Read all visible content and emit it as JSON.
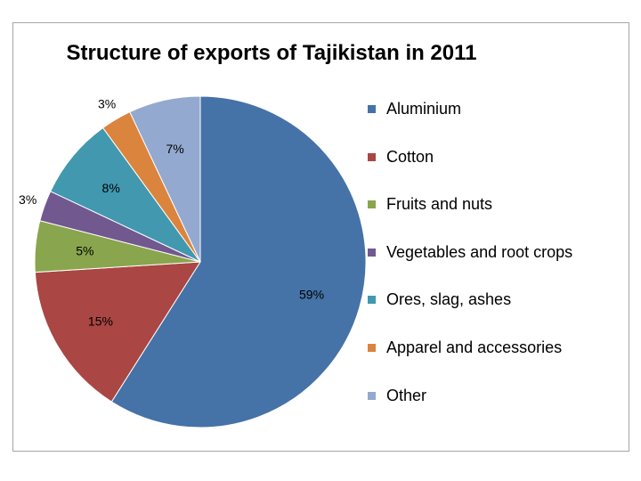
{
  "chart_data": {
    "type": "pie",
    "title": "Structure of exports of Tajikistan in 2011",
    "legend_position": "right",
    "slices": [
      {
        "name": "Aluminium",
        "value": 59,
        "label": "59%",
        "color": "#4572a7"
      },
      {
        "name": "Cotton",
        "value": 15,
        "label": "15%",
        "color": "#aa4643"
      },
      {
        "name": "Fruits and nuts",
        "value": 5,
        "label": "5%",
        "color": "#89a54e"
      },
      {
        "name": "Vegetables and root crops",
        "value": 3,
        "label": "3%",
        "color": "#71588f"
      },
      {
        "name": "Ores, slag, ashes",
        "value": 8,
        "label": "8%",
        "color": "#4198af"
      },
      {
        "name": "Apparel and accessories",
        "value": 3,
        "label": "3%",
        "color": "#db843d"
      },
      {
        "name": "Other",
        "value": 7,
        "label": "7%",
        "color": "#93a9cf"
      }
    ]
  }
}
